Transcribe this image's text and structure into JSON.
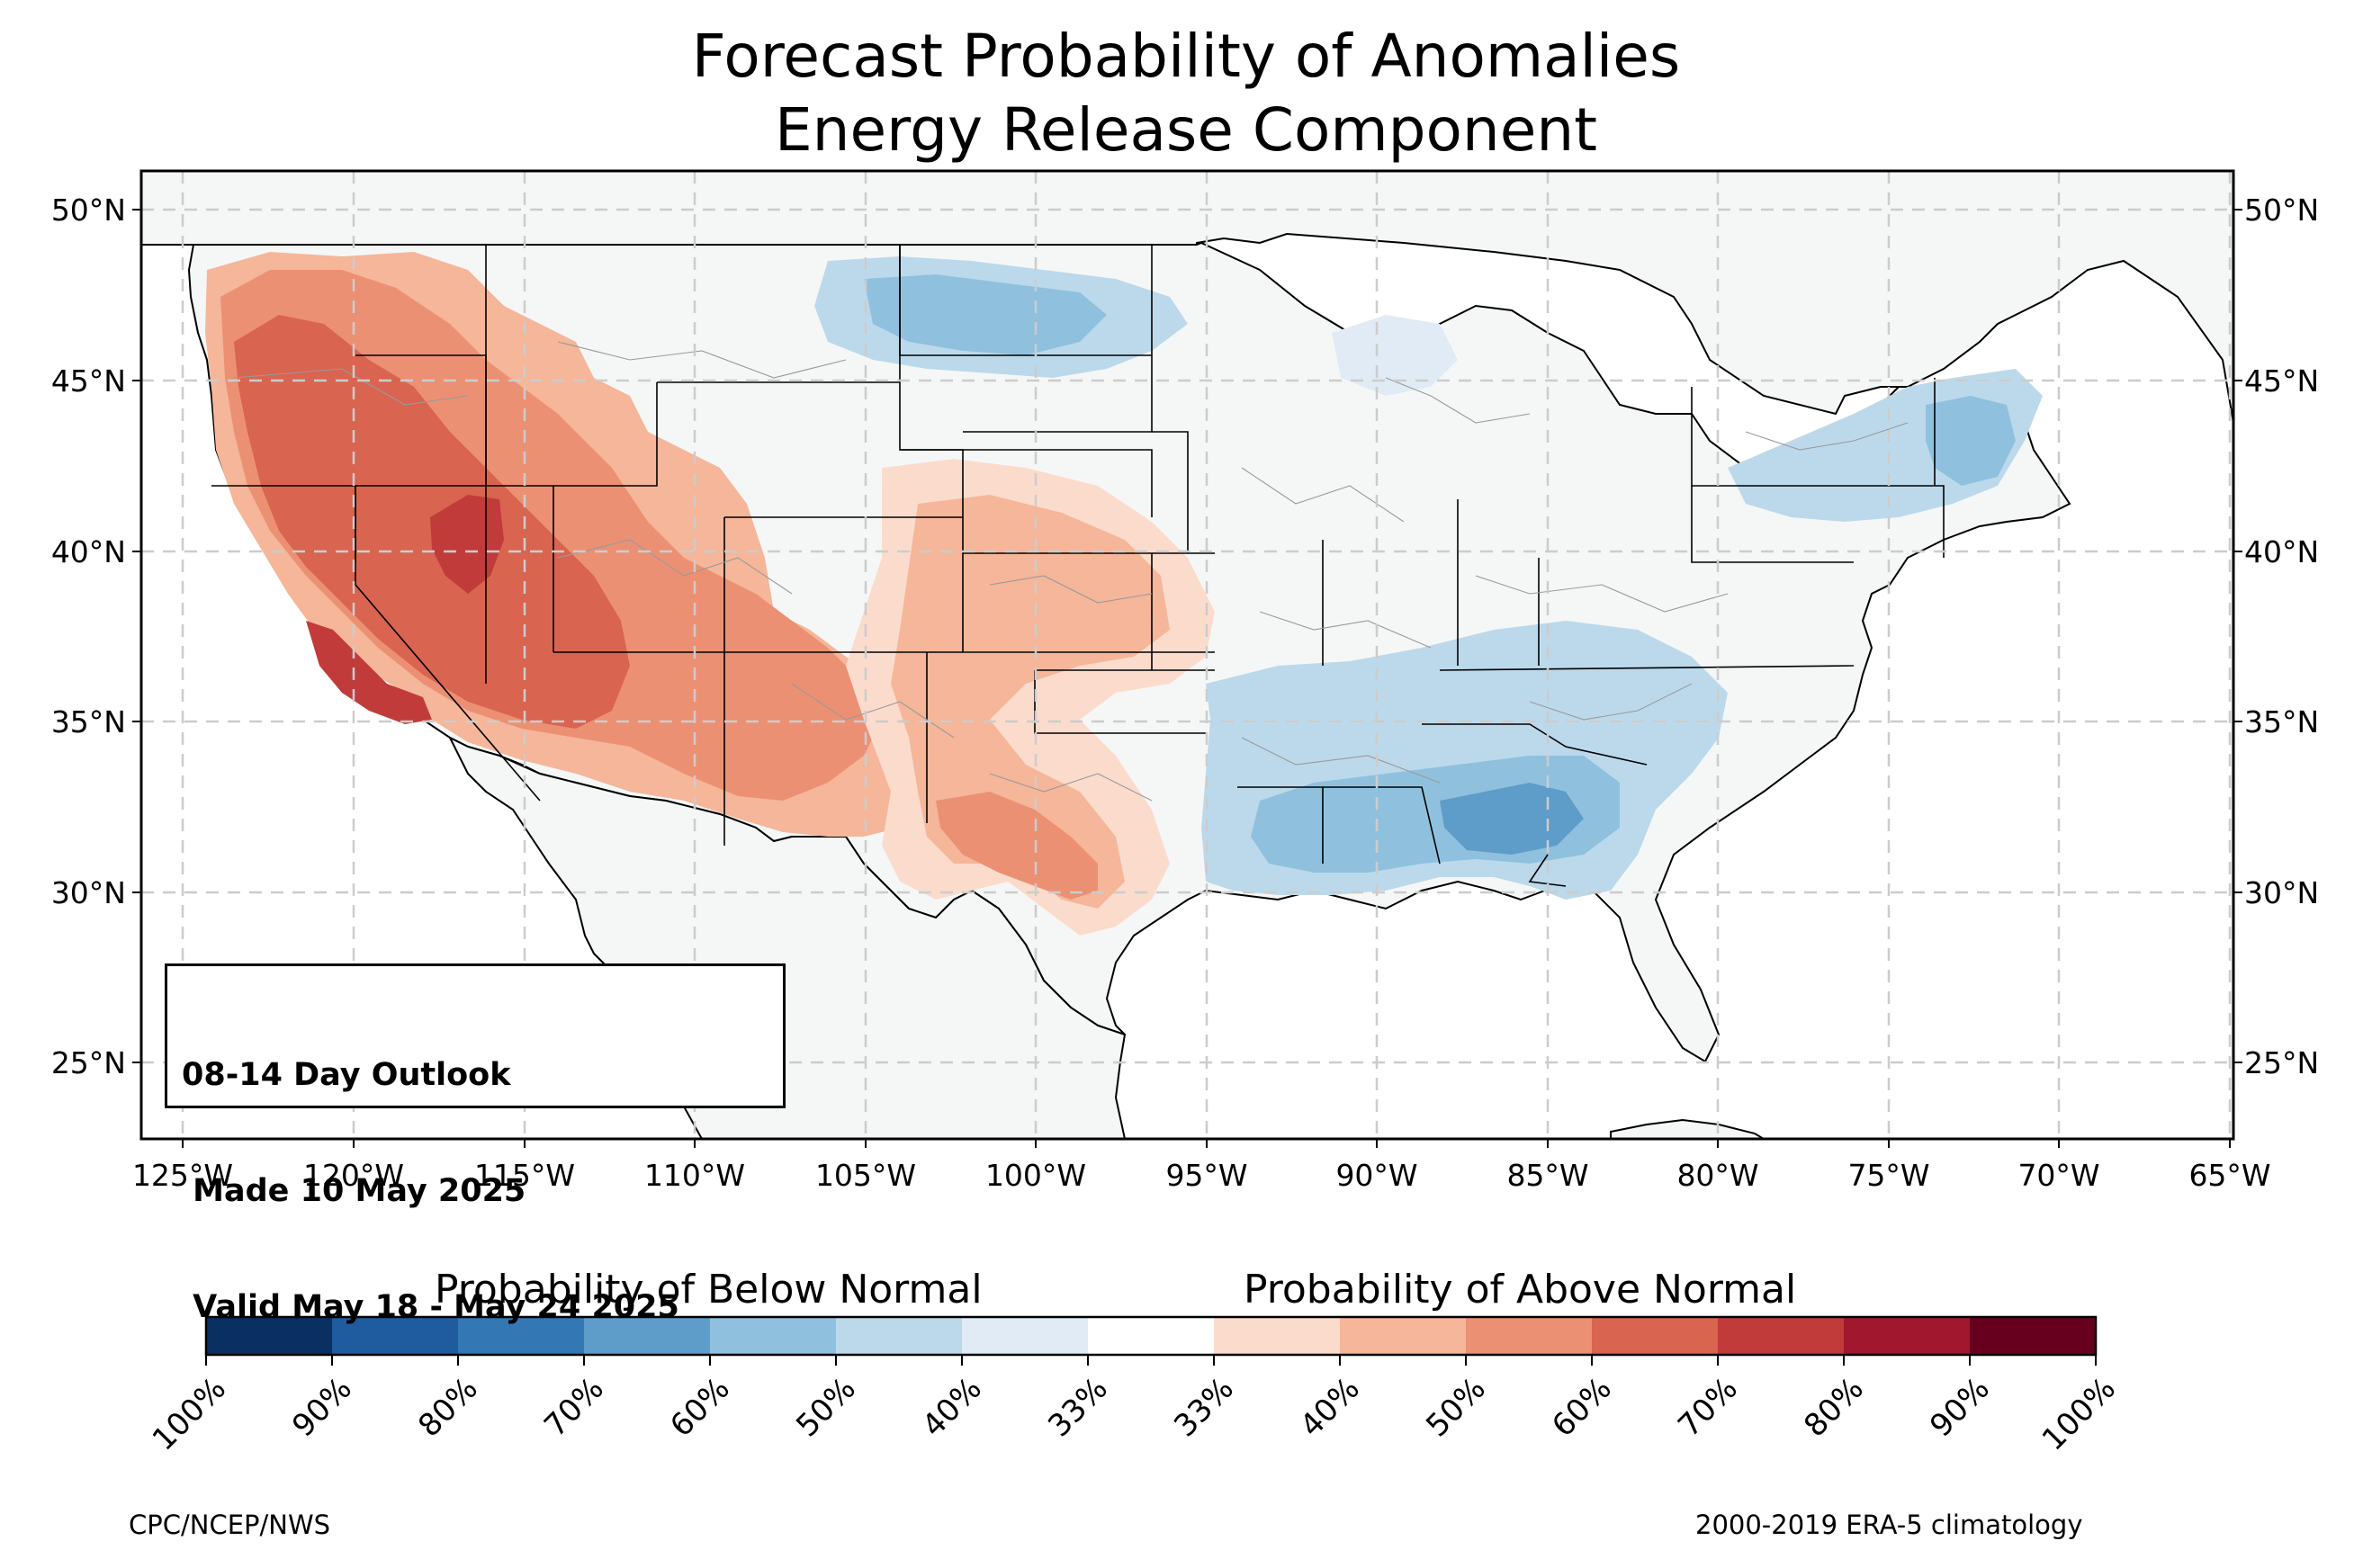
{
  "title": {
    "line1": "Forecast Probability of Anomalies",
    "line2": "Energy Release Component"
  },
  "map": {
    "latitude_labels": [
      "50°N",
      "45°N",
      "40°N",
      "35°N",
      "30°N",
      "25°N"
    ],
    "longitude_labels": [
      "125°W",
      "120°W",
      "115°W",
      "110°W",
      "105°W",
      "100°W",
      "95°W",
      "90°W",
      "85°W",
      "80°W",
      "75°W",
      "70°W",
      "65°W"
    ],
    "colors": {
      "land": "#f5f7f7",
      "grid": "#cccccc",
      "border": "#000000",
      "county_lines": "#9a9a9a"
    }
  },
  "info_box": {
    "line1": "08-14 Day Outlook",
    "line2": " Made 10 May 2025",
    "line3": " Valid May 18 - May 24 2025"
  },
  "legend": {
    "below_label": "Probability of Below Normal",
    "above_label": "Probability of Above Normal",
    "tick_labels": [
      "100%",
      "90%",
      "80%",
      "70%",
      "60%",
      "50%",
      "40%",
      "33%",
      "33%",
      "40%",
      "50%",
      "60%",
      "70%",
      "80%",
      "90%",
      "100%"
    ],
    "colors": [
      "#0a2f61",
      "#1f5b9f",
      "#3377b5",
      "#5e9dc9",
      "#8fc1de",
      "#bcd9eb",
      "#e0ebf5",
      "#ffffff",
      "#fbdccc",
      "#f5b69a",
      "#ec9073",
      "#d96450",
      "#c23b3b",
      "#a1172e",
      "#67001f"
    ]
  },
  "footer": {
    "left": "CPC/NCEP/NWS",
    "right": "2000-2019 ERA-5 climatology"
  }
}
